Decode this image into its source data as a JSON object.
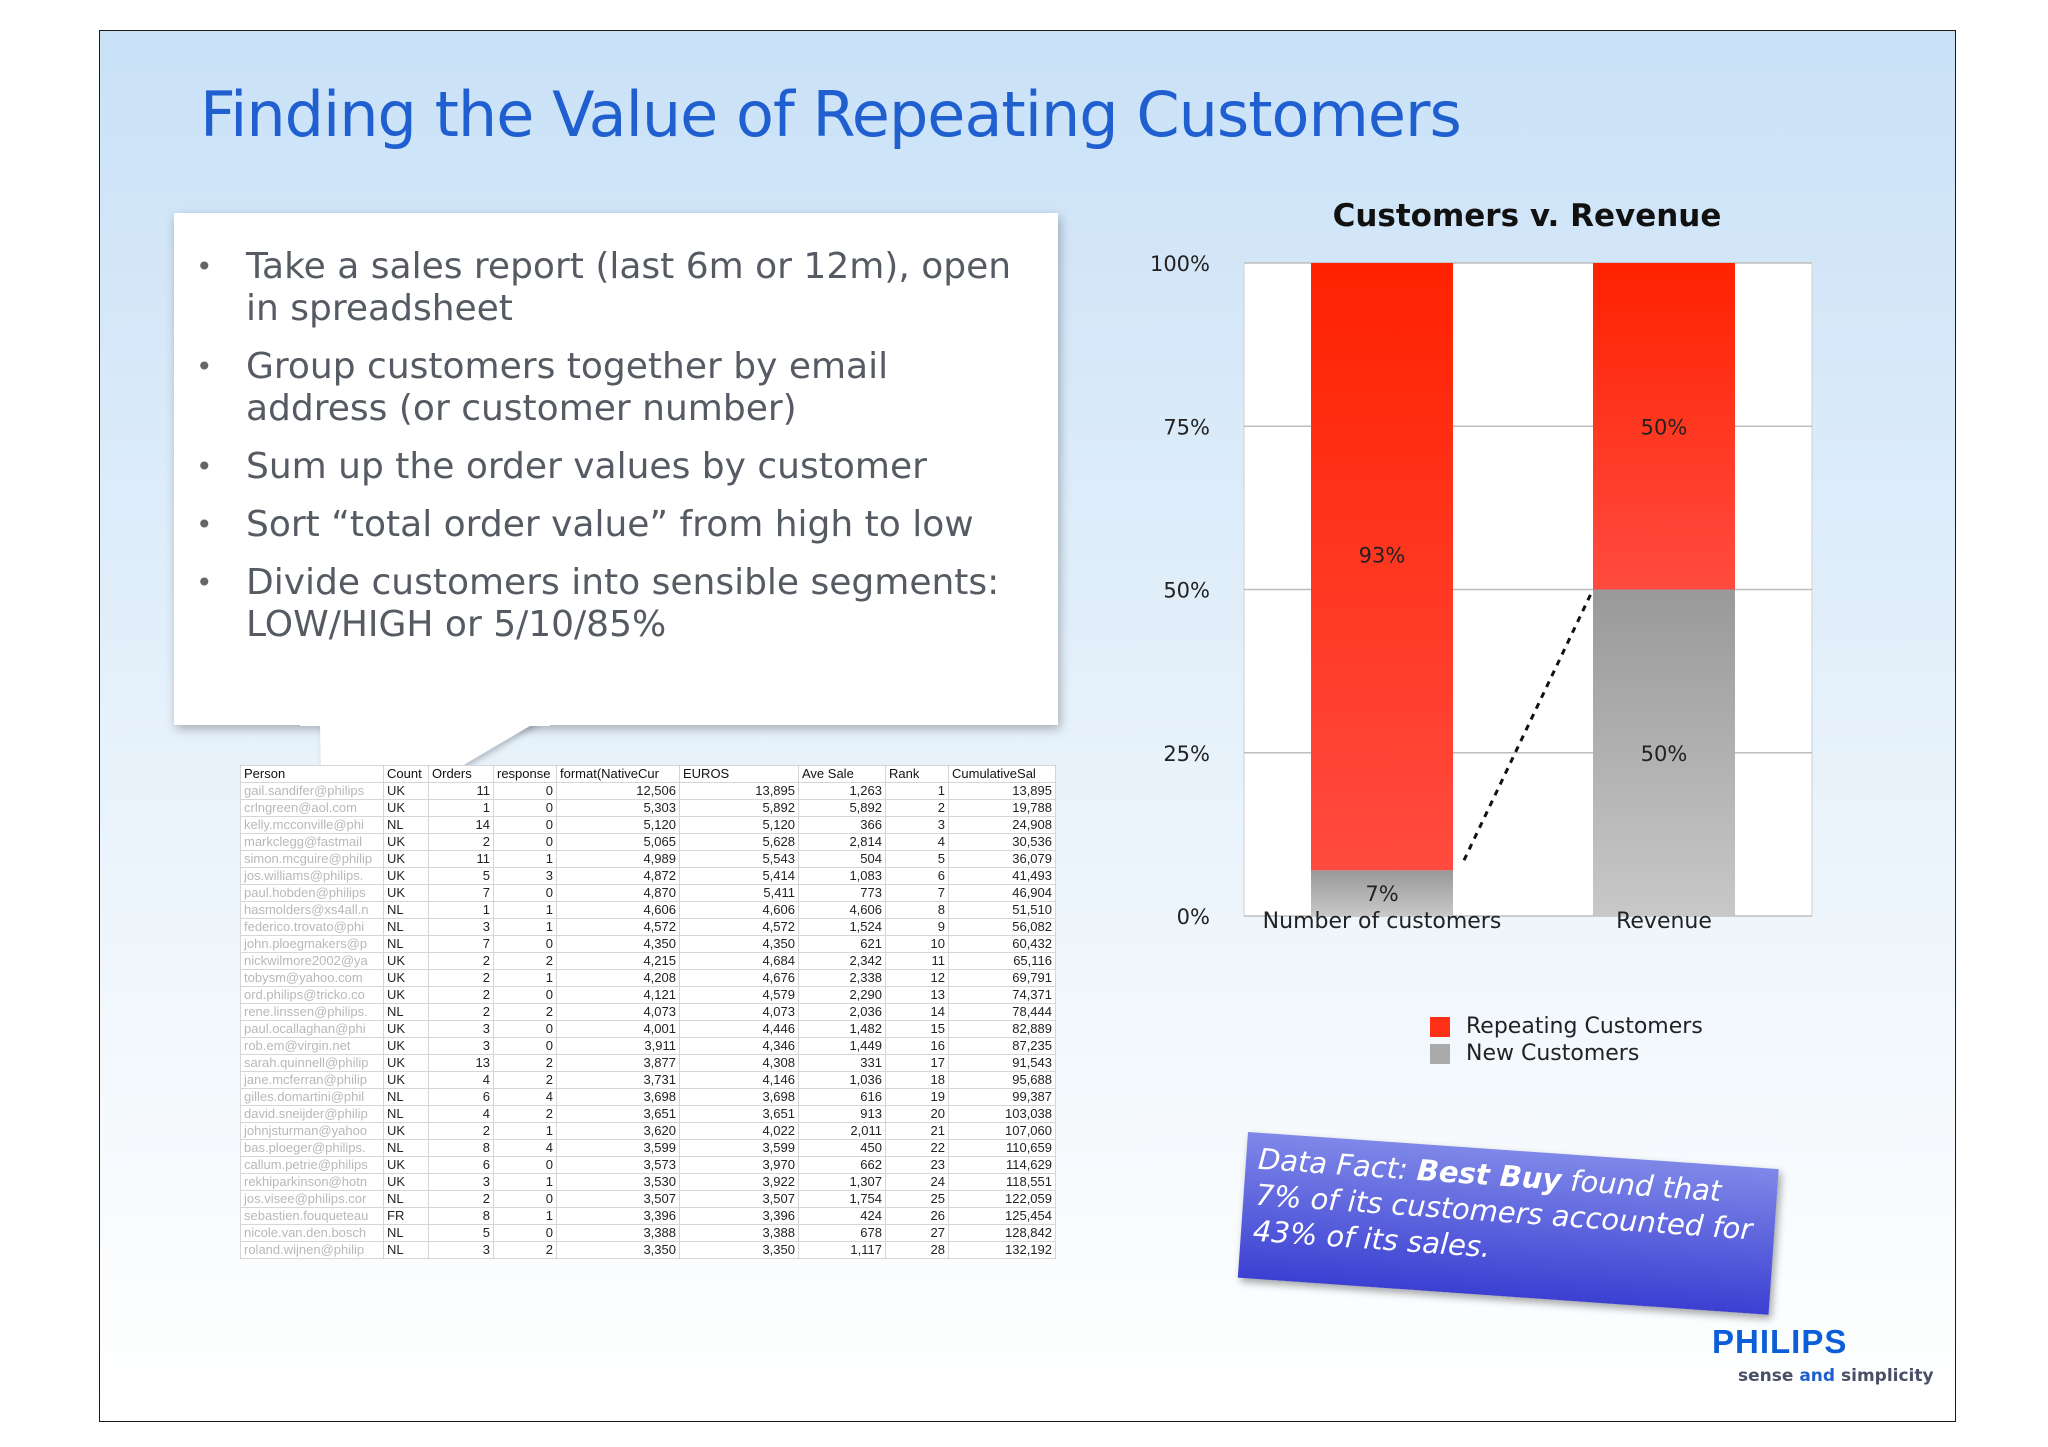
{
  "title": "Finding the Value of Repeating Customers",
  "bullets": [
    "Take a sales report (last 6m or 12m), open in spreadsheet",
    "Group customers together by email address (or customer number)",
    "Sum up the order values by customer",
    "Sort “total order value” from high to low",
    "Divide customers into sensible segments: LOW/HIGH or 5/10/85%"
  ],
  "spreadsheet": {
    "headers": [
      "Person",
      "Count",
      "Orders",
      "response",
      "format(NativeCur",
      "EUROS",
      "Ave Sale",
      "Rank",
      "CumulativeSal"
    ],
    "rows": [
      [
        "gail.sandifer@philips",
        "UK",
        "11",
        "0",
        "12,506",
        "13,895",
        "1,263",
        "1",
        "13,895"
      ],
      [
        "crlngreen@aol.com",
        "UK",
        "1",
        "0",
        "5,303",
        "5,892",
        "5,892",
        "2",
        "19,788"
      ],
      [
        "kelly.mcconville@phi",
        "NL",
        "14",
        "0",
        "5,120",
        "5,120",
        "366",
        "3",
        "24,908"
      ],
      [
        "markclegg@fastmail",
        "UK",
        "2",
        "0",
        "5,065",
        "5,628",
        "2,814",
        "4",
        "30,536"
      ],
      [
        "simon.mcguire@philip",
        "UK",
        "11",
        "1",
        "4,989",
        "5,543",
        "504",
        "5",
        "36,079"
      ],
      [
        "jos.williams@philips.",
        "UK",
        "5",
        "3",
        "4,872",
        "5,414",
        "1,083",
        "6",
        "41,493"
      ],
      [
        "paul.hobden@philips",
        "UK",
        "7",
        "0",
        "4,870",
        "5,411",
        "773",
        "7",
        "46,904"
      ],
      [
        "hasmolders@xs4all.n",
        "NL",
        "1",
        "1",
        "4,606",
        "4,606",
        "4,606",
        "8",
        "51,510"
      ],
      [
        "federico.trovato@phi",
        "NL",
        "3",
        "1",
        "4,572",
        "4,572",
        "1,524",
        "9",
        "56,082"
      ],
      [
        "john.ploegmakers@p",
        "NL",
        "7",
        "0",
        "4,350",
        "4,350",
        "621",
        "10",
        "60,432"
      ],
      [
        "nickwilmore2002@ya",
        "UK",
        "2",
        "2",
        "4,215",
        "4,684",
        "2,342",
        "11",
        "65,116"
      ],
      [
        "tobysm@yahoo.com",
        "UK",
        "2",
        "1",
        "4,208",
        "4,676",
        "2,338",
        "12",
        "69,791"
      ],
      [
        "ord.philips@tricko.co",
        "UK",
        "2",
        "0",
        "4,121",
        "4,579",
        "2,290",
        "13",
        "74,371"
      ],
      [
        "rene.linssen@philips.",
        "NL",
        "2",
        "2",
        "4,073",
        "4,073",
        "2,036",
        "14",
        "78,444"
      ],
      [
        "paul.ocallaghan@phi",
        "UK",
        "3",
        "0",
        "4,001",
        "4,446",
        "1,482",
        "15",
        "82,889"
      ],
      [
        "rob.em@virgin.net",
        "UK",
        "3",
        "0",
        "3,911",
        "4,346",
        "1,449",
        "16",
        "87,235"
      ],
      [
        "sarah.quinnell@philip",
        "UK",
        "13",
        "2",
        "3,877",
        "4,308",
        "331",
        "17",
        "91,543"
      ],
      [
        "jane.mcferran@philip",
        "UK",
        "4",
        "2",
        "3,731",
        "4,146",
        "1,036",
        "18",
        "95,688"
      ],
      [
        "gilles.domartini@phil",
        "NL",
        "6",
        "4",
        "3,698",
        "3,698",
        "616",
        "19",
        "99,387"
      ],
      [
        "david.sneijder@philip",
        "NL",
        "4",
        "2",
        "3,651",
        "3,651",
        "913",
        "20",
        "103,038"
      ],
      [
        "johnjsturman@yahoo",
        "UK",
        "2",
        "1",
        "3,620",
        "4,022",
        "2,011",
        "21",
        "107,060"
      ],
      [
        "bas.ploeger@philips.",
        "NL",
        "8",
        "4",
        "3,599",
        "3,599",
        "450",
        "22",
        "110,659"
      ],
      [
        "callum.petrie@philips",
        "UK",
        "6",
        "0",
        "3,573",
        "3,970",
        "662",
        "23",
        "114,629"
      ],
      [
        "rekhiparkinson@hotn",
        "UK",
        "3",
        "1",
        "3,530",
        "3,922",
        "1,307",
        "24",
        "118,551"
      ],
      [
        "jos.visee@philips.cor",
        "NL",
        "2",
        "0",
        "3,507",
        "3,507",
        "1,754",
        "25",
        "122,059"
      ],
      [
        "sebastien.fouqueteau",
        "FR",
        "8",
        "1",
        "3,396",
        "3,396",
        "424",
        "26",
        "125,454"
      ],
      [
        "nicole.van.den.bosch",
        "NL",
        "5",
        "0",
        "3,388",
        "3,388",
        "678",
        "27",
        "128,842"
      ],
      [
        "roland.wijnen@philip",
        "NL",
        "3",
        "2",
        "3,350",
        "3,350",
        "1,117",
        "28",
        "132,192"
      ]
    ]
  },
  "chart_data": {
    "type": "bar",
    "stacked": true,
    "title": "Customers v. Revenue",
    "categories": [
      "Number of customers",
      "Revenue"
    ],
    "series": [
      {
        "name": "New Customers",
        "values": [
          7,
          50
        ],
        "labels": [
          "7%",
          "50%"
        ],
        "color": "#aaaaaa"
      },
      {
        "name": "Repeating Customers",
        "values": [
          93,
          50
        ],
        "labels": [
          "93%",
          "50%"
        ],
        "color": "#ff3018"
      }
    ],
    "ylim": [
      0,
      100
    ],
    "yticks": [
      "0%",
      "25%",
      "50%",
      "75%",
      "100%"
    ],
    "grid": true,
    "legend": "bottom"
  },
  "data_fact": {
    "lead": "Data Fact:",
    "company": "Best Buy",
    "rest": "found that 7% of its customers accounted for 43% of its sales."
  },
  "logo": {
    "name": "PHILIPS",
    "tagline_a": "sense",
    "tagline_and": "and",
    "tagline_b": "simplicity"
  }
}
